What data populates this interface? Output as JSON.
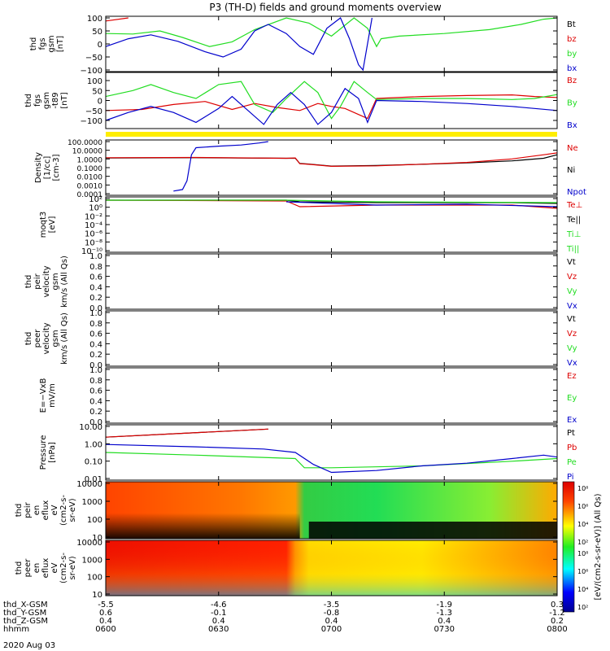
{
  "title": "P3 (TH-D) fields and ground moments overview",
  "date_label": "2020 Aug 03",
  "colors": {
    "black": "#000000",
    "red": "#dd0000",
    "green": "#22dd22",
    "blue": "#0000cc",
    "yellow": "#ffee00"
  },
  "chart_data": {
    "type": "line",
    "time_ticks": [
      "0600",
      "0630",
      "0700",
      "0730",
      "0800"
    ],
    "time_range": [
      "0600",
      "0800"
    ],
    "ephemeris_rows": [
      {
        "label": "thd_X-GSM",
        "values": [
          "-5.5",
          "-4.6",
          "-3.5",
          "-1.9",
          "0.3"
        ]
      },
      {
        "label": "thd_Y-GSM",
        "values": [
          "0.6",
          "-0.1",
          "-0.8",
          "-1.3",
          "-1.2"
        ]
      },
      {
        "label": "thd_Z-GSM",
        "values": [
          "0.4",
          "0.4",
          "0.4",
          "0.4",
          "0.2"
        ]
      },
      {
        "label": "hhmm",
        "values": [
          "0600",
          "0630",
          "0700",
          "0730",
          "0800"
        ]
      }
    ],
    "panels": [
      {
        "id": "p1",
        "ylabel_lines": [
          "thd",
          "fgs",
          "gsm",
          "[nT]"
        ],
        "scale": "linear",
        "ylim": [
          -100,
          100
        ],
        "yticks": [
          "100",
          "50",
          "0",
          "−50",
          "−100"
        ],
        "legend": [
          {
            "text": "Bt",
            "color": "black"
          },
          {
            "text": "bz",
            "color": "red"
          },
          {
            "text": "by",
            "color": "green"
          },
          {
            "text": "bx",
            "color": "blue"
          }
        ]
      },
      {
        "id": "p2",
        "ylabel_lines": [
          "thd",
          "fgs",
          "gsm",
          "-t89",
          "[nT]"
        ],
        "scale": "linear",
        "ylim": [
          -125,
          125
        ],
        "yticks": [
          "100",
          "50",
          "0",
          "−50",
          "−100"
        ],
        "legend": [
          {
            "text": "Bz",
            "color": "red"
          },
          {
            "text": "By",
            "color": "green"
          },
          {
            "text": "Bx",
            "color": "blue"
          }
        ]
      },
      {
        "id": "p3",
        "ylabel_lines": [
          "Density",
          "[1/cc]",
          "[cm-3]"
        ],
        "scale": "log",
        "yticks": [
          "100.0000",
          "10.0000",
          "1.0000",
          "0.1000",
          "0.0100",
          "0.0010",
          "0.0001"
        ],
        "legend": [
          {
            "text": "Ne",
            "color": "red"
          },
          {
            "text": "Ni",
            "color": "black"
          },
          {
            "text": "Npot",
            "color": "blue"
          }
        ]
      },
      {
        "id": "p4",
        "ylabel_lines": [
          "moqt3",
          "[eV]"
        ],
        "scale": "log",
        "yticks": [
          "10²",
          "10⁰",
          "10⁻²",
          "10⁻⁴",
          "10⁻⁶",
          "10⁻⁸",
          "10⁻¹⁰"
        ],
        "legend": [
          {
            "text": "Te⊥",
            "color": "red"
          },
          {
            "text": "Te||",
            "color": "black"
          },
          {
            "text": "Ti⊥",
            "color": "green"
          },
          {
            "text": "Ti||",
            "color": "green"
          }
        ]
      },
      {
        "id": "p5",
        "ylabel_lines": [
          "thd",
          "peir",
          "velocity",
          "gsm",
          "km/s (All Qs)"
        ],
        "scale": "linear",
        "yticks": [
          "1.0",
          "0.8",
          "0.6",
          "0.4",
          "0.2",
          "0.0"
        ],
        "legend": [
          {
            "text": "Vt",
            "color": "black"
          },
          {
            "text": "Vz",
            "color": "red"
          },
          {
            "text": "Vy",
            "color": "green"
          },
          {
            "text": "Vx",
            "color": "blue"
          }
        ]
      },
      {
        "id": "p6",
        "ylabel_lines": [
          "thd",
          "peer",
          "velocity",
          "gsm",
          "km/s (All Qs)"
        ],
        "scale": "linear",
        "yticks": [
          "1.0",
          "0.8",
          "0.6",
          "0.4",
          "0.2",
          "0.0"
        ],
        "legend": [
          {
            "text": "Vt",
            "color": "black"
          },
          {
            "text": "Vz",
            "color": "red"
          },
          {
            "text": "Vy",
            "color": "green"
          },
          {
            "text": "Vx",
            "color": "blue"
          }
        ]
      },
      {
        "id": "p7",
        "ylabel_lines": [
          "E=−VxB",
          "mV/m"
        ],
        "scale": "linear",
        "yticks": [
          "1.0",
          "0.8",
          "0.6",
          "0.4",
          "0.2",
          "0.0"
        ],
        "legend": [
          {
            "text": "Ez",
            "color": "red"
          },
          {
            "text": "Ey",
            "color": "green"
          },
          {
            "text": "Ex",
            "color": "blue"
          }
        ]
      },
      {
        "id": "p8",
        "ylabel_lines": [
          "Pressure",
          "[nPa]"
        ],
        "scale": "log",
        "yticks": [
          "10.00",
          "1.00",
          "0.10",
          "0.01"
        ],
        "legend": [
          {
            "text": "Pt",
            "color": "black"
          },
          {
            "text": "Pb",
            "color": "red"
          },
          {
            "text": "Pe",
            "color": "green"
          },
          {
            "text": "Pi",
            "color": "blue"
          }
        ]
      },
      {
        "id": "p9",
        "ylabel_lines": [
          "thd",
          "peir",
          "en",
          "eflux",
          "eV",
          "(cm2-s-",
          "sr-eV)"
        ],
        "scale": "log",
        "yticks": [
          "10000",
          "1000",
          "100",
          "10"
        ]
      },
      {
        "id": "p10",
        "ylabel_lines": [
          "thd",
          "peer",
          "en",
          "eflux",
          "eV",
          "(cm2-s-",
          "sr-eV)"
        ],
        "scale": "log",
        "yticks": [
          "10000",
          "1000",
          "100",
          "10"
        ]
      }
    ],
    "colorbar": {
      "label": "[eV/(cm2-s-sr-eV)] (All Qs)",
      "ticks_top": [
        "10⁸",
        "10⁶",
        "10⁴",
        "10²"
      ],
      "ticks_bottom": [
        "10⁸",
        "10⁶",
        "10⁴",
        "10²"
      ]
    },
    "series": {
      "p1": {
        "bz_red": [
          [
            0,
            88
          ],
          [
            0.05,
            100
          ]
        ],
        "by_green": [
          [
            0,
            40
          ],
          [
            0.06,
            38
          ],
          [
            0.12,
            50
          ],
          [
            0.17,
            25
          ],
          [
            0.23,
            -10
          ],
          [
            0.28,
            8
          ],
          [
            0.33,
            55
          ],
          [
            0.4,
            100
          ],
          [
            0.45,
            80
          ],
          [
            0.5,
            30
          ],
          [
            0.55,
            100
          ],
          [
            0.58,
            60
          ],
          [
            0.6,
            -10
          ],
          [
            0.61,
            20
          ],
          [
            0.65,
            30
          ],
          [
            0.75,
            40
          ],
          [
            0.85,
            55
          ],
          [
            0.92,
            75
          ],
          [
            0.97,
            95
          ],
          [
            1,
            100
          ]
        ],
        "bx_blue": [
          [
            0,
            -10
          ],
          [
            0.05,
            20
          ],
          [
            0.1,
            35
          ],
          [
            0.16,
            10
          ],
          [
            0.22,
            -30
          ],
          [
            0.26,
            -50
          ],
          [
            0.3,
            -20
          ],
          [
            0.33,
            50
          ],
          [
            0.36,
            75
          ],
          [
            0.4,
            40
          ],
          [
            0.43,
            -10
          ],
          [
            0.46,
            -40
          ],
          [
            0.49,
            60
          ],
          [
            0.52,
            100
          ],
          [
            0.54,
            20
          ],
          [
            0.56,
            -80
          ],
          [
            0.57,
            -100
          ],
          [
            0.59,
            100
          ]
        ]
      },
      "p2": {
        "bz_red": [
          [
            0,
            -50
          ],
          [
            0.08,
            -45
          ],
          [
            0.15,
            -20
          ],
          [
            0.22,
            -5
          ],
          [
            0.28,
            -45
          ],
          [
            0.33,
            -15
          ],
          [
            0.38,
            -35
          ],
          [
            0.43,
            -50
          ],
          [
            0.47,
            -15
          ],
          [
            0.5,
            -30
          ],
          [
            0.53,
            -40
          ],
          [
            0.56,
            -70
          ],
          [
            0.58,
            -90
          ],
          [
            0.6,
            10
          ],
          [
            0.7,
            20
          ],
          [
            0.8,
            25
          ],
          [
            0.9,
            28
          ],
          [
            0.95,
            20
          ],
          [
            1,
            15
          ]
        ],
        "by_green": [
          [
            0,
            20
          ],
          [
            0.06,
            50
          ],
          [
            0.1,
            80
          ],
          [
            0.15,
            40
          ],
          [
            0.2,
            10
          ],
          [
            0.25,
            80
          ],
          [
            0.3,
            95
          ],
          [
            0.33,
            -20
          ],
          [
            0.37,
            -60
          ],
          [
            0.4,
            10
          ],
          [
            0.44,
            95
          ],
          [
            0.47,
            40
          ],
          [
            0.5,
            -90
          ],
          [
            0.52,
            -30
          ],
          [
            0.55,
            95
          ],
          [
            0.58,
            40
          ],
          [
            0.6,
            5
          ],
          [
            0.7,
            10
          ],
          [
            0.8,
            10
          ],
          [
            0.9,
            5
          ],
          [
            0.95,
            10
          ],
          [
            1,
            30
          ]
        ],
        "bx_blue": [
          [
            0,
            -100
          ],
          [
            0.05,
            -60
          ],
          [
            0.1,
            -30
          ],
          [
            0.15,
            -60
          ],
          [
            0.2,
            -110
          ],
          [
            0.25,
            -40
          ],
          [
            0.28,
            20
          ],
          [
            0.31,
            -40
          ],
          [
            0.35,
            -120
          ],
          [
            0.38,
            -20
          ],
          [
            0.41,
            40
          ],
          [
            0.44,
            -20
          ],
          [
            0.47,
            -120
          ],
          [
            0.5,
            -60
          ],
          [
            0.53,
            60
          ],
          [
            0.56,
            10
          ],
          [
            0.58,
            -110
          ],
          [
            0.6,
            0
          ],
          [
            0.7,
            -5
          ],
          [
            0.8,
            -15
          ],
          [
            0.9,
            -30
          ],
          [
            0.95,
            -40
          ],
          [
            1,
            -50
          ]
        ]
      },
      "p3": {
        "ne_red": [
          [
            0,
            1.4
          ],
          [
            0.2,
            1.5
          ],
          [
            0.4,
            1.2
          ],
          [
            0.42,
            1.3
          ],
          [
            0.43,
            0.28
          ],
          [
            0.45,
            0.24
          ],
          [
            0.5,
            0.14
          ],
          [
            0.6,
            0.16
          ],
          [
            0.7,
            0.25
          ],
          [
            0.8,
            0.4
          ],
          [
            0.9,
            1.0
          ],
          [
            0.97,
            3
          ],
          [
            1,
            5
          ]
        ],
        "ni_black": [
          [
            0,
            1.3
          ],
          [
            0.2,
            1.4
          ],
          [
            0.4,
            1.2
          ],
          [
            0.42,
            1.2
          ],
          [
            0.43,
            0.3
          ],
          [
            0.45,
            0.26
          ],
          [
            0.5,
            0.15
          ],
          [
            0.6,
            0.18
          ],
          [
            0.7,
            0.24
          ],
          [
            0.8,
            0.35
          ],
          [
            0.9,
            0.6
          ],
          [
            0.97,
            1.2
          ],
          [
            1,
            3
          ]
        ],
        "npot_blue": [
          [
            0.15,
            0.0002
          ],
          [
            0.17,
            0.0003
          ],
          [
            0.18,
            0.003
          ],
          [
            0.19,
            3
          ],
          [
            0.2,
            20
          ],
          [
            0.25,
            30
          ],
          [
            0.3,
            40
          ],
          [
            0.34,
            70
          ],
          [
            0.36,
            100
          ]
        ]
      },
      "p8": {
        "pt_black": [
          [
            0,
            3
          ],
          [
            0.36,
            10
          ]
        ],
        "pb_red": [
          [
            0,
            3
          ],
          [
            0.36,
            10
          ]
        ],
        "pe_green": [
          [
            0,
            0.3
          ],
          [
            0.2,
            0.2
          ],
          [
            0.42,
            0.12
          ],
          [
            0.44,
            0.03
          ],
          [
            0.5,
            0.03
          ],
          [
            0.7,
            0.04
          ],
          [
            0.9,
            0.08
          ],
          [
            1,
            0.12
          ]
        ],
        "pi_blue": [
          [
            0,
            1.0
          ],
          [
            0.2,
            0.7
          ],
          [
            0.35,
            0.5
          ],
          [
            0.42,
            0.3
          ],
          [
            0.46,
            0.05
          ],
          [
            0.5,
            0.015
          ],
          [
            0.6,
            0.02
          ],
          [
            0.7,
            0.04
          ],
          [
            0.8,
            0.06
          ],
          [
            0.9,
            0.12
          ],
          [
            0.97,
            0.2
          ],
          [
            1,
            0.15
          ]
        ]
      }
    }
  }
}
